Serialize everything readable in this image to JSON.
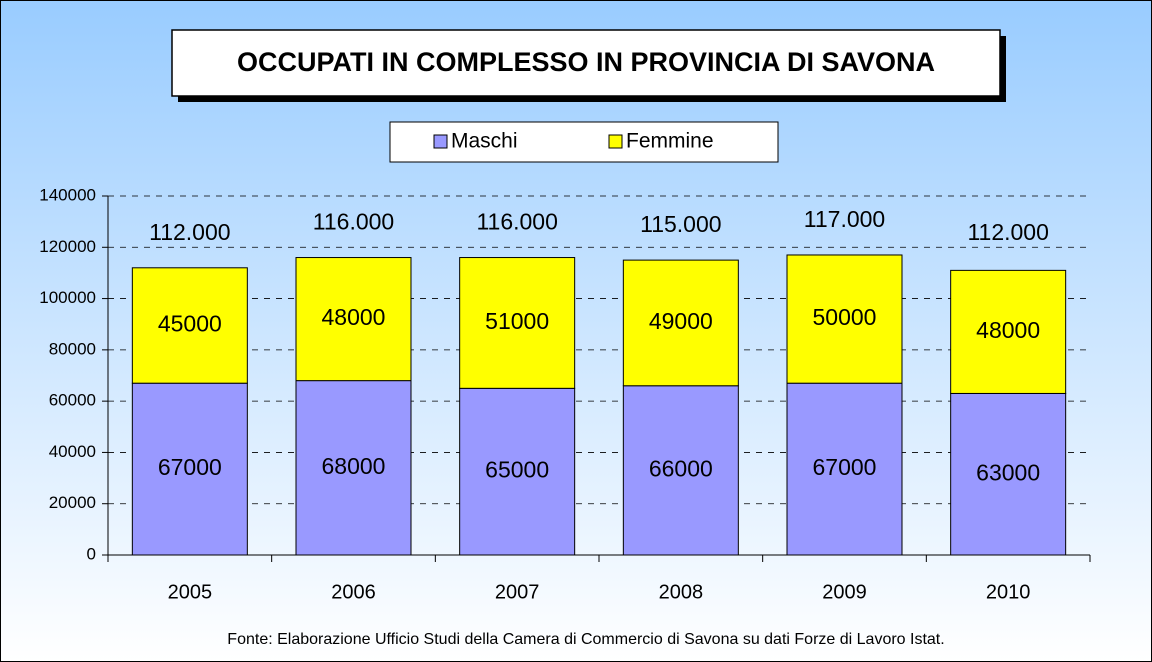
{
  "chart_data": {
    "type": "stacked_bar",
    "title": "OCCUPATI IN COMPLESSO IN PROVINCIA DI SAVONA",
    "categories": [
      "2005",
      "2006",
      "2007",
      "2008",
      "2009",
      "2010"
    ],
    "series": [
      {
        "name": "Maschi",
        "color": "#9999ff",
        "values": [
          67000,
          68000,
          65000,
          66000,
          67000,
          63000
        ]
      },
      {
        "name": "Femmine",
        "color": "#ffff00",
        "values": [
          45000,
          48000,
          51000,
          49000,
          50000,
          48000
        ]
      }
    ],
    "totals": {
      "values": [
        112000,
        116000,
        116000,
        115000,
        117000,
        112000
      ],
      "value_labels": [
        "112.000",
        "116.000",
        "116.000",
        "115.000",
        "117.000",
        "112.000"
      ]
    },
    "ylim": [
      0,
      140000
    ],
    "yticks": [
      0,
      20000,
      40000,
      60000,
      80000,
      100000,
      120000,
      140000
    ],
    "grid": true,
    "legend": "top",
    "footnote": "Fonte: Elaborazione Ufficio Studi della Camera di Commercio di Savona su dati Forze di Lavoro Istat."
  }
}
